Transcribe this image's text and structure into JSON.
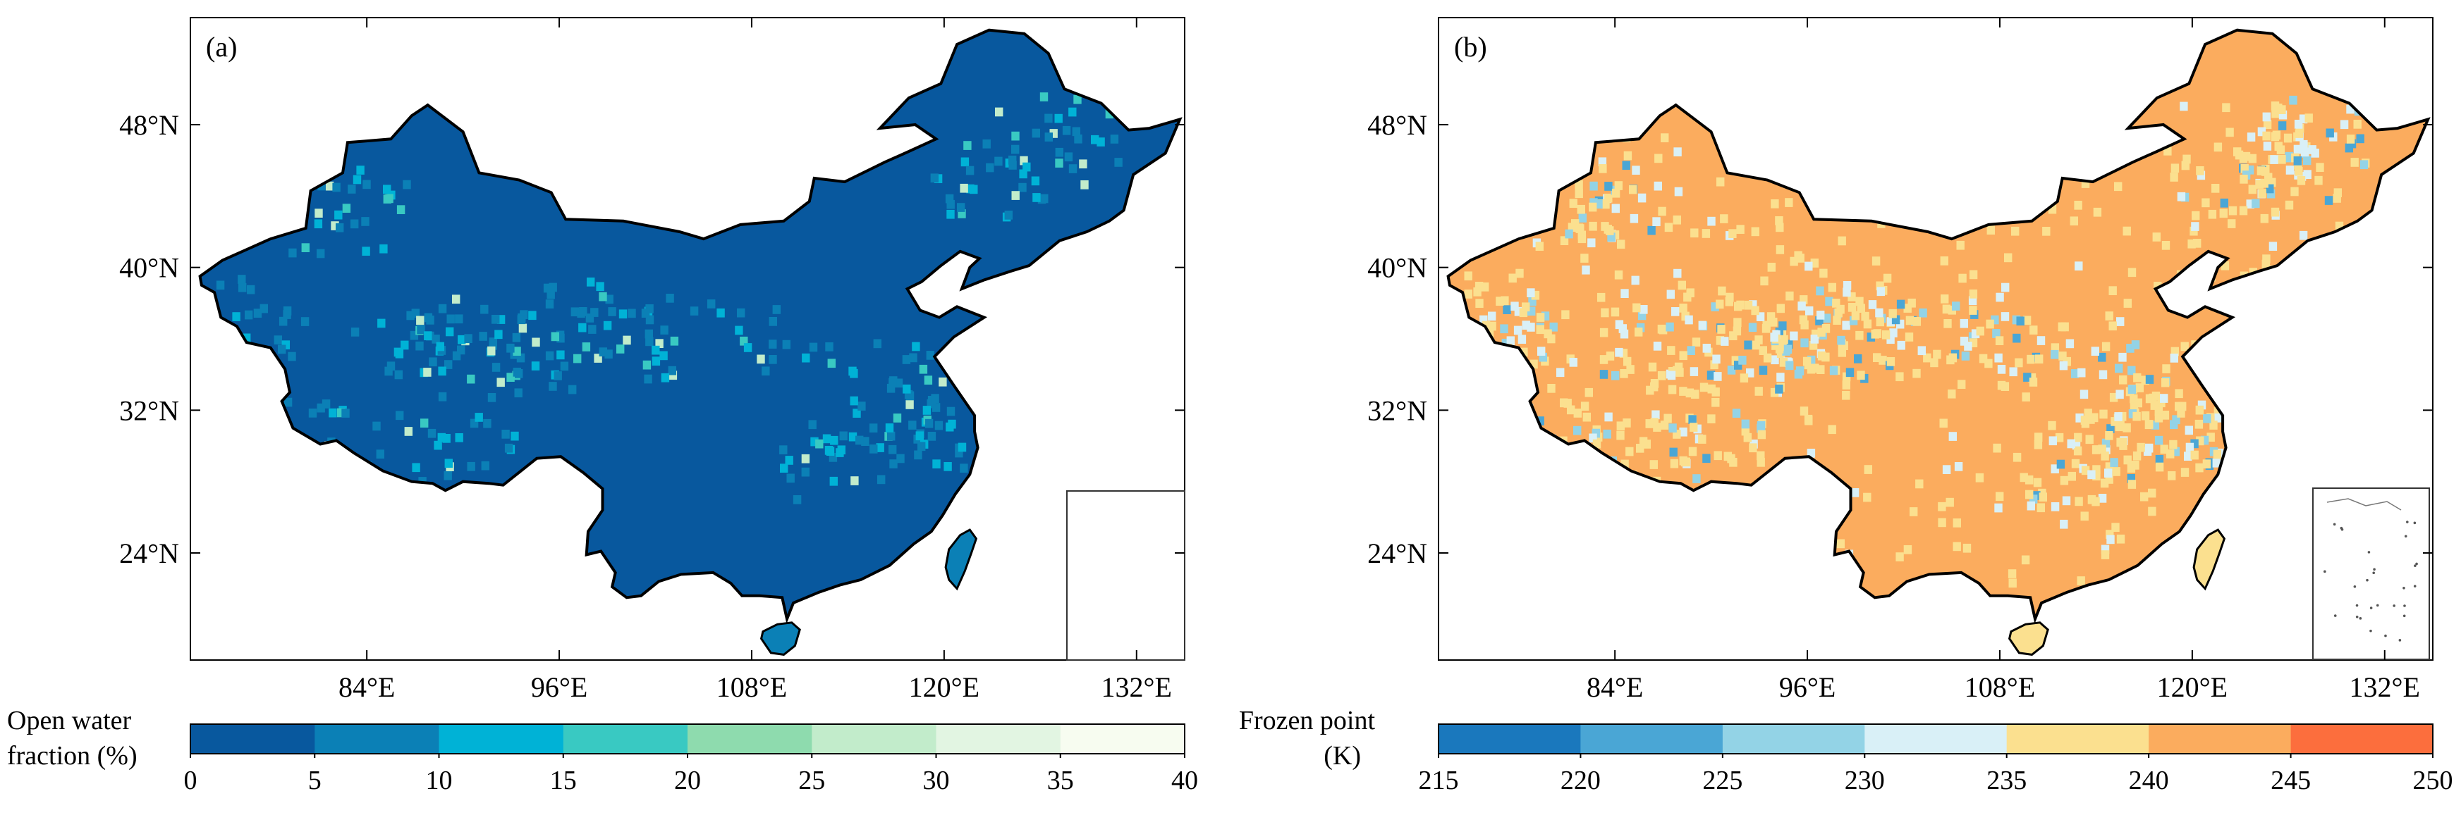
{
  "chart_data": [
    {
      "type": "heatmap",
      "panel_label": "(a)",
      "variable": "Open water fraction",
      "colorbar": {
        "title_line1": "Open water",
        "title_line2": "fraction (%)",
        "ticks": [
          "0",
          "5",
          "10",
          "15",
          "20",
          "25",
          "30",
          "35",
          "40"
        ],
        "bins": [
          0,
          5,
          10,
          15,
          20,
          25,
          30,
          35,
          40
        ],
        "colors": [
          "#08589e",
          "#0b80b6",
          "#00b2d6",
          "#39c9c2",
          "#8edbae",
          "#c2eccb",
          "#e2f5e2",
          "#f7fcf0"
        ]
      },
      "lon_ticks": [
        84,
        96,
        108,
        120,
        132
      ],
      "lat_ticks": [
        24,
        32,
        40,
        48
      ],
      "xtick_labels": [
        "84°E",
        "96°E",
        "108°E",
        "120°E",
        "132°E"
      ],
      "ytick_labels": [
        "24°N",
        "32°N",
        "40°N",
        "48°N"
      ],
      "xlim": [
        73,
        135
      ],
      "ylim": [
        18,
        54
      ],
      "dominant_value_range": "0-5"
    },
    {
      "type": "heatmap",
      "panel_label": "(b)",
      "variable": "Frozen point",
      "colorbar": {
        "title_line1": "Frozen point",
        "title_line2": "(K)",
        "ticks": [
          "215",
          "220",
          "225",
          "230",
          "235",
          "240",
          "245",
          "250"
        ],
        "bins": [
          215,
          220,
          225,
          230,
          235,
          240,
          245,
          250
        ],
        "colors": [
          "#1a78bd",
          "#4aa6d5",
          "#93d3e6",
          "#d9f0f7",
          "#fbe08f",
          "#fbac5e",
          "#fc6e3d"
        ]
      },
      "lon_ticks": [
        84,
        96,
        108,
        120,
        132
      ],
      "lat_ticks": [
        24,
        32,
        40,
        48
      ],
      "xtick_labels": [
        "84°E",
        "96°E",
        "108°E",
        "120°E",
        "132°E"
      ],
      "ytick_labels": [
        "24°N",
        "32°N",
        "40°N",
        "48°N"
      ],
      "xlim": [
        73,
        135
      ],
      "ylim": [
        18,
        54
      ],
      "dominant_value_range": "240-245"
    }
  ]
}
